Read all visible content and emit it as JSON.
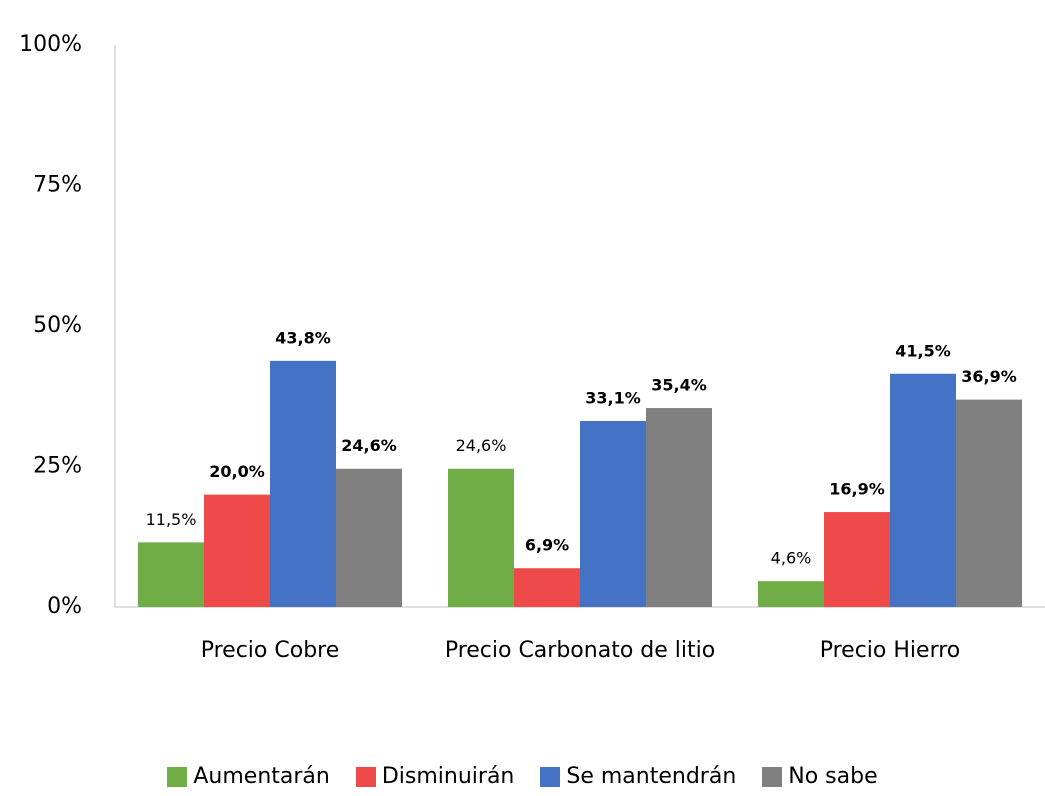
{
  "chart_data": {
    "type": "bar",
    "categories": [
      "Precio Cobre",
      "Precio Carbonato de litio",
      "Precio Hierro"
    ],
    "series": [
      {
        "name": "Aumentarán",
        "color": "#70ad47",
        "bold_labels": false,
        "values": [
          11.5,
          24.6,
          4.6
        ],
        "value_labels": [
          "11,5%",
          "24,6%",
          "4,6%"
        ]
      },
      {
        "name": "Disminuirán",
        "color": "#ee4a4a",
        "bold_labels": true,
        "values": [
          20.0,
          6.9,
          16.9
        ],
        "value_labels": [
          "20,0%",
          "6,9%",
          "16,9%"
        ]
      },
      {
        "name": "Se mantendrán",
        "color": "#4472c4",
        "bold_labels": true,
        "values": [
          43.8,
          33.1,
          41.5
        ],
        "value_labels": [
          "43,8%",
          "33,1%",
          "41,5%"
        ]
      },
      {
        "name": "No sabe",
        "color": "#808080",
        "bold_labels": true,
        "values": [
          24.6,
          35.4,
          36.9
        ],
        "value_labels": [
          "24,6%",
          "35,4%",
          "36,9%"
        ]
      }
    ],
    "ylim": [
      0,
      100
    ],
    "yticks": [
      {
        "value": 0,
        "label": "0%"
      },
      {
        "value": 25,
        "label": "25%"
      },
      {
        "value": 50,
        "label": "50%"
      },
      {
        "value": 75,
        "label": "75%"
      },
      {
        "value": 100,
        "label": "100%"
      }
    ],
    "grid": false,
    "legend": "bottom"
  }
}
